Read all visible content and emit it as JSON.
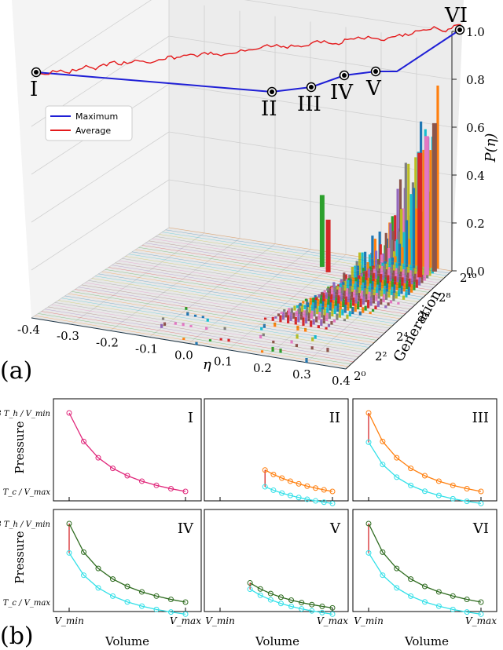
{
  "figure": {
    "panel_a_label": "(a)",
    "panel_b_label": "(b)"
  },
  "chart_data": [
    {
      "type": "line",
      "panel": "a",
      "zlabel": "P(η)",
      "z_ticks": [
        "0.0",
        "0.2",
        "0.4",
        "0.6",
        "0.8",
        "1.0"
      ],
      "xlabel": "η",
      "x_ticks": [
        "-0.4",
        "-0.3",
        "-0.2",
        "-0.1",
        "0.0",
        "0.1",
        "0.2",
        "0.3",
        "0.4"
      ],
      "ylabel": "Generation",
      "y_ticks": [
        "2⁰",
        "2²",
        "2⁴",
        "2⁶",
        "2⁸",
        "2¹⁰"
      ],
      "legend": {
        "placement": "upper-left",
        "entries": [
          {
            "name": "Maximum",
            "color": "#1f1fd6"
          },
          {
            "name": "Average",
            "color": "#e41a1c"
          }
        ]
      },
      "markers": [
        "I",
        "II",
        "III",
        "IV",
        "V",
        "VI"
      ],
      "series": [
        {
          "name": "Maximum",
          "color": "#1f1fd6"
        },
        {
          "name": "Average",
          "color": "#e41a1c"
        }
      ],
      "histogram_note": "per-generation histograms of η"
    },
    {
      "type": "line",
      "panel": "b",
      "ylabel": "Pressure",
      "xlabel": "Volume",
      "x_ticks": [
        "V_min",
        "V_max"
      ],
      "y_ticks": [
        "N k_B T_h / V_min",
        "N k_B T_c / V_max"
      ],
      "subplots": [
        "I",
        "II",
        "III",
        "IV",
        "V",
        "VI"
      ]
    }
  ]
}
